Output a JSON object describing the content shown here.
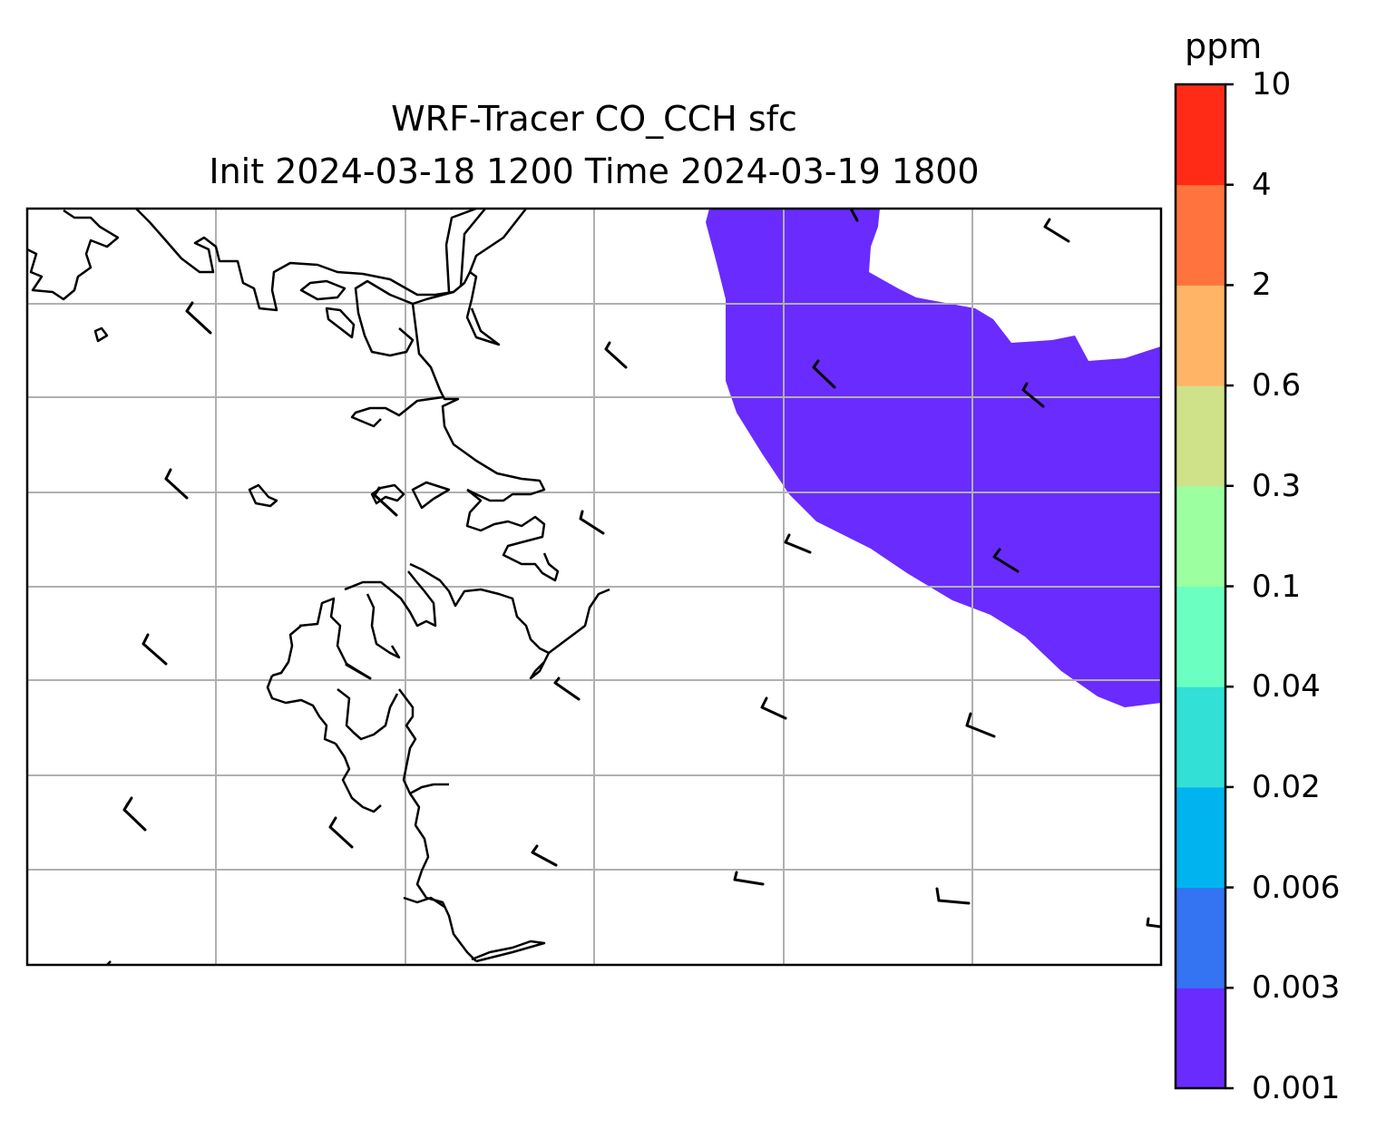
{
  "title": {
    "line1": "WRF-Tracer CO_CCH sfc",
    "line2": "Init 2024-03-18 1200 Time 2024-03-19 1800"
  },
  "colorbar": {
    "unit": "ppm",
    "levels": [
      "0.001",
      "0.003",
      "0.006",
      "0.02",
      "0.04",
      "0.1",
      "0.3",
      "0.6",
      "2",
      "4",
      "10"
    ],
    "colors": [
      "#6a2bff",
      "#3474f2",
      "#00b4ef",
      "#32e0d6",
      "#6bffc1",
      "#9cffa0",
      "#d0e289",
      "#ffb466",
      "#ff743e",
      "#ff2b17"
    ]
  },
  "map": {
    "field_fill_color": "#6a2bff",
    "gridline_color": "#b0b0b0",
    "coastline_color": "#000000",
    "overlay": "wind-barbs"
  }
}
